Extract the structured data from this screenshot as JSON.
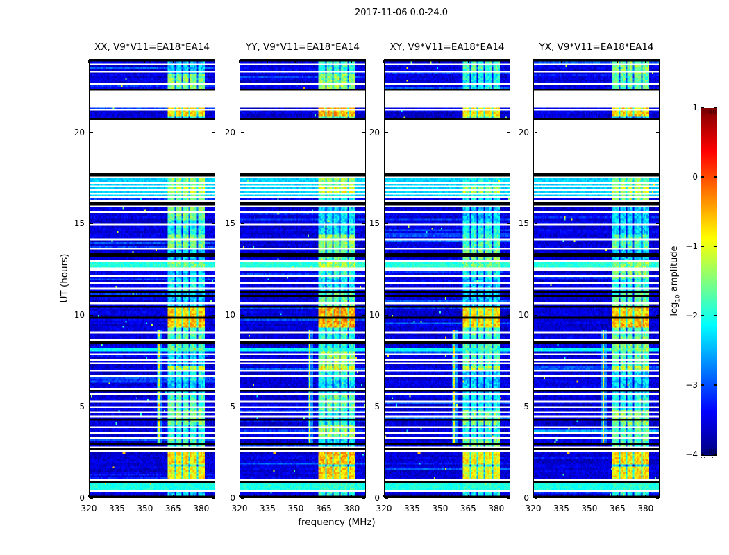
{
  "figure": {
    "title": "2017-11-06 0.0-24.0",
    "xlabel": "frequency (MHz)",
    "ylabel": "UT (hours)",
    "colorbar_label": {
      "pre": "log",
      "sub": "10",
      "post": " amplitude"
    }
  },
  "chart_data": {
    "type": "heatmap",
    "title": "2017-11-06 0.0-24.0",
    "xlabel": "frequency (MHz)",
    "ylabel": "UT (hours)",
    "colormap": "jet",
    "x_range_mhz": [
      320,
      387.5
    ],
    "x_ticks": [
      320,
      335,
      350,
      365,
      380
    ],
    "y_range_hours": [
      0,
      24
    ],
    "y_ticks": [
      0,
      5,
      10,
      15,
      20
    ],
    "colorbar": {
      "label": "log10 amplitude",
      "range": [
        -4,
        1
      ],
      "ticks": [
        1,
        0,
        -1,
        -2,
        -3,
        -4
      ]
    },
    "panels": [
      {
        "title": "XX, V9*V11=EA18*EA14",
        "seed": 11,
        "rfi_gain": 0
      },
      {
        "title": "YY, V9*V11=EA18*EA14",
        "seed": 23,
        "rfi_gain": 0.2
      },
      {
        "title": "XY, V9*V11=EA18*EA14",
        "seed": 37,
        "rfi_gain": -0.1
      },
      {
        "title": "YX, V9*V11=EA18*EA14",
        "seed": 51,
        "rfi_gain": 0.05
      }
    ],
    "background_level": -3.55,
    "noise_spread": 0.45,
    "speckle_chance": 0.0035,
    "rfi_band": {
      "freq_mhz": [
        362,
        382
      ],
      "subband_gap_freqs": [
        366,
        370,
        374,
        378
      ],
      "base_levels": [
        -2.35,
        -2.05,
        -1.75,
        -1.5
      ]
    },
    "strong_rfi_events": [
      [
        0.95,
        1.65,
        -0.85
      ],
      [
        1.75,
        2.45,
        -0.75
      ],
      [
        7.02,
        7.2,
        -1.1
      ],
      [
        9.3,
        9.8,
        -0.62
      ],
      [
        9.95,
        10.38,
        -0.72
      ],
      [
        12.63,
        12.87,
        -1.5
      ],
      [
        16.6,
        17.12,
        -1.2
      ],
      [
        20.95,
        21.42,
        -0.75
      ]
    ],
    "narrowband_line": {
      "freq_mhz": 357.8,
      "time": [
        3.05,
        9.15
      ],
      "level": -1.25
    },
    "wideband_stripes": [
      [
        0.45,
        0.75,
        -2.0
      ],
      [
        8.02,
        8.2,
        -2.1
      ],
      [
        12.63,
        12.87,
        -1.95
      ],
      [
        16.55,
        17.45,
        -2.35
      ]
    ],
    "bright_rows_region": [
      16.55,
      17.72
    ],
    "bright_dot": {
      "freq_mhz": 338.5,
      "time": 2.47,
      "level": -0.55
    },
    "white_gaps": [
      [
        17.85,
        20.65
      ],
      [
        21.45,
        22.25
      ],
      [
        23.68,
        23.78
      ],
      [
        23.3,
        23.4
      ],
      [
        22.58,
        22.68
      ],
      [
        21.18,
        21.26
      ],
      [
        17.47,
        17.55
      ],
      [
        17.25,
        17.32
      ],
      [
        17.02,
        17.09
      ],
      [
        16.82,
        16.89
      ],
      [
        16.6,
        16.66
      ],
      [
        16.38,
        16.46
      ],
      [
        16.2,
        16.28
      ],
      [
        15.88,
        15.97
      ],
      [
        15.58,
        15.66
      ],
      [
        14.88,
        14.96
      ],
      [
        14.36,
        14.44
      ],
      [
        14.08,
        14.16
      ],
      [
        13.58,
        13.66
      ],
      [
        12.92,
        13.02
      ],
      [
        12.4,
        12.55
      ],
      [
        12.14,
        12.22
      ],
      [
        11.68,
        11.76
      ],
      [
        11.44,
        11.52
      ],
      [
        10.58,
        10.66
      ],
      [
        9.16,
        9.24
      ],
      [
        8.98,
        9.06
      ],
      [
        8.64,
        8.72
      ],
      [
        8.26,
        8.34
      ],
      [
        7.84,
        7.92
      ],
      [
        7.54,
        7.62
      ],
      [
        7.28,
        7.36
      ],
      [
        6.88,
        6.96
      ],
      [
        6.58,
        6.66
      ],
      [
        5.94,
        6.02
      ],
      [
        5.62,
        5.7
      ],
      [
        5.24,
        5.32
      ],
      [
        4.88,
        4.96
      ],
      [
        4.58,
        4.66
      ],
      [
        4.43,
        4.5
      ],
      [
        3.84,
        3.92
      ],
      [
        3.54,
        3.62
      ],
      [
        3.18,
        3.26
      ],
      [
        2.68,
        2.82
      ],
      [
        2.48,
        2.56
      ],
      [
        1.66,
        1.74
      ],
      [
        0.92,
        1.0
      ],
      [
        0.34,
        0.42
      ]
    ],
    "black_rows": [
      23.93,
      22.38,
      20.72,
      17.76,
      17.68,
      16.1,
      13.3,
      11.22,
      11.04,
      10.44,
      9.86,
      8.5,
      5.88,
      4.28,
      2.98,
      2.6,
      0.84,
      0.06
    ]
  }
}
